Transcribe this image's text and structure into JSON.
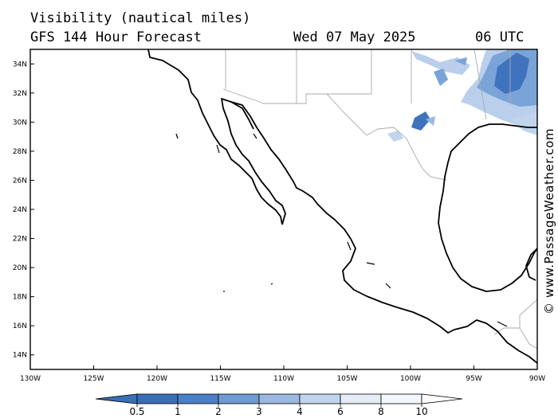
{
  "header": {
    "title": "Visibility (nautical miles)",
    "subtitle": "GFS 144 Hour Forecast",
    "date": "Wed 07 May 2025",
    "time": "06 UTC"
  },
  "watermark": "© www.PassageWeather.com",
  "map": {
    "lon_range": [
      -130,
      -90
    ],
    "lat_range": [
      13,
      35
    ],
    "lat_ticks": [
      {
        "value": 34,
        "label": "34N"
      },
      {
        "value": 32,
        "label": "32N"
      },
      {
        "value": 30,
        "label": "30N"
      },
      {
        "value": 28,
        "label": "28N"
      },
      {
        "value": 26,
        "label": "26N"
      },
      {
        "value": 24,
        "label": "24N"
      },
      {
        "value": 22,
        "label": "22N"
      },
      {
        "value": 20,
        "label": "20N"
      },
      {
        "value": 18,
        "label": "18N"
      },
      {
        "value": 16,
        "label": "16N"
      },
      {
        "value": 14,
        "label": "14N"
      }
    ],
    "lon_ticks": [
      {
        "value": -130,
        "label": "130W"
      },
      {
        "value": -125,
        "label": "125W"
      },
      {
        "value": -120,
        "label": "120W"
      },
      {
        "value": -115,
        "label": "115W"
      },
      {
        "value": -110,
        "label": "110W"
      },
      {
        "value": -105,
        "label": "105W"
      },
      {
        "value": -100,
        "label": "100W"
      },
      {
        "value": -95,
        "label": "95W"
      },
      {
        "value": -90,
        "label": "90W"
      }
    ]
  },
  "colorbar": {
    "labels": [
      "0.5",
      "1",
      "2",
      "3",
      "4",
      "6",
      "8",
      "10"
    ],
    "colors": [
      "#3a6fb8",
      "#4a80c6",
      "#6f9bd2",
      "#9ab8e0",
      "#c0d4ec",
      "#e3ecf7",
      "#f4f8fc",
      "#ffffff"
    ]
  },
  "colors": {
    "coast": "#000000",
    "border": "#aaaaaa",
    "fog_dense": "#3f73bd",
    "fog_medium": "#7aa3d8",
    "fog_light": "#b9cfeb"
  }
}
